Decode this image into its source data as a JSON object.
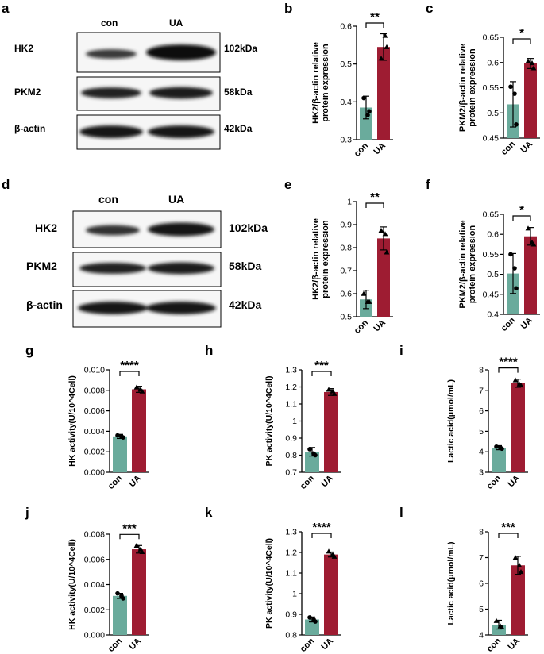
{
  "panel_letters": {
    "a": "a",
    "b": "b",
    "c": "c",
    "d": "d",
    "e": "e",
    "f": "f",
    "g": "g",
    "h": "h",
    "i": "i",
    "j": "j",
    "k": "k",
    "l": "l"
  },
  "blots": [
    {
      "id": "a",
      "columns": [
        "con",
        "UA"
      ],
      "rows": [
        {
          "name": "HK2",
          "mw": "102kDa"
        },
        {
          "name": "PKM2",
          "mw": "58kDa"
        },
        {
          "name": "β-actin",
          "mw": "42kDa"
        }
      ]
    },
    {
      "id": "d",
      "columns": [
        "con",
        "UA"
      ],
      "rows": [
        {
          "name": "HK2",
          "mw": "102kDa"
        },
        {
          "name": "PKM2",
          "mw": "58kDa"
        },
        {
          "name": "β-actin",
          "mw": "42kDa"
        }
      ]
    }
  ],
  "colors": {
    "con": "#6aab9c",
    "UA": "#9e1c32"
  },
  "chart_data": [
    {
      "id": "b",
      "type": "bar",
      "categories": [
        "con",
        "UA"
      ],
      "values": [
        0.385,
        0.545
      ],
      "errors": [
        0.03,
        0.035
      ],
      "points": [
        [
          0.41,
          0.365,
          0.375
        ],
        [
          0.515,
          0.575,
          0.545
        ]
      ],
      "point_shapes": [
        "circle",
        "triangle"
      ],
      "ylabel": [
        "HK2/β-actin relative",
        "protein expression"
      ],
      "ylim": [
        0.3,
        0.6
      ],
      "yticks": [
        0.3,
        0.4,
        0.5,
        0.6
      ],
      "significance": "**"
    },
    {
      "id": "c",
      "type": "bar",
      "categories": [
        "con",
        "UA"
      ],
      "values": [
        0.517,
        0.598
      ],
      "errors": [
        0.045,
        0.01
      ],
      "points": [
        [
          0.552,
          0.538,
          0.477
        ],
        [
          0.603,
          0.599,
          0.589
        ]
      ],
      "point_shapes": [
        "circle",
        "triangle"
      ],
      "ylabel": [
        "PKM2/β-actin relative",
        "protein expression"
      ],
      "ylim": [
        0.45,
        0.65
      ],
      "yticks": [
        0.45,
        0.5,
        0.55,
        0.6,
        0.65
      ],
      "significance": "*"
    },
    {
      "id": "e",
      "type": "bar",
      "categories": [
        "con",
        "UA"
      ],
      "values": [
        0.575,
        0.84
      ],
      "errors": [
        0.04,
        0.05
      ],
      "points": [
        [
          0.6,
          0.565,
          0.565
        ],
        [
          0.875,
          0.86,
          0.78
        ]
      ],
      "point_shapes": [
        "triangle",
        "triangle"
      ],
      "ylabel": [
        "HK2/β-actin relative",
        "protein expression"
      ],
      "ylim": [
        0.5,
        1.0
      ],
      "yticks": [
        0.5,
        0.6,
        0.7,
        0.8,
        0.9,
        1.0
      ],
      "significance": "**"
    },
    {
      "id": "f",
      "type": "bar",
      "categories": [
        "con",
        "UA"
      ],
      "values": [
        0.502,
        0.595
      ],
      "errors": [
        0.05,
        0.022
      ],
      "points": [
        [
          0.55,
          0.515,
          0.465
        ],
        [
          0.615,
          0.58,
          0.575
        ]
      ],
      "point_shapes": [
        "circle",
        "triangle"
      ],
      "ylabel": [
        "PKM2/β-actin relative",
        "protein expression"
      ],
      "ylim": [
        0.4,
        0.65
      ],
      "yticks": [
        0.4,
        0.45,
        0.5,
        0.55,
        0.6,
        0.65
      ],
      "significance": "*"
    },
    {
      "id": "g",
      "type": "bar",
      "categories": [
        "con",
        "UA"
      ],
      "values": [
        0.0035,
        0.0081
      ],
      "errors": [
        0.0002,
        0.0003
      ],
      "points": [
        [
          0.0036,
          0.0035,
          0.0034
        ],
        [
          0.0083,
          0.0081,
          0.0079
        ]
      ],
      "point_shapes": [
        "circle",
        "triangle"
      ],
      "ylabel": [
        "HK activity(U/10^4Cell)"
      ],
      "ylim": [
        0,
        0.01
      ],
      "yticks": [
        "0.000",
        "0.002",
        "0.004",
        "0.006",
        "0.008",
        "0.010"
      ],
      "significance": "****"
    },
    {
      "id": "h",
      "type": "bar",
      "categories": [
        "con",
        "UA"
      ],
      "values": [
        0.82,
        1.17
      ],
      "errors": [
        0.025,
        0.02
      ],
      "points": [
        [
          0.835,
          0.81,
          0.8
        ],
        [
          1.185,
          1.175,
          1.16
        ]
      ],
      "point_shapes": [
        "circle",
        "triangle"
      ],
      "ylabel": [
        "PK activity(U/10^4Cell)"
      ],
      "ylim": [
        0.7,
        1.3
      ],
      "yticks": [
        0.7,
        0.8,
        0.9,
        1.0,
        1.1,
        1.2,
        1.3
      ],
      "significance": "***"
    },
    {
      "id": "i",
      "type": "bar",
      "categories": [
        "con",
        "UA"
      ],
      "values": [
        4.2,
        7.35
      ],
      "errors": [
        0.1,
        0.2
      ],
      "points": [
        [
          4.25,
          4.2,
          4.15
        ],
        [
          7.5,
          7.3,
          7.25
        ]
      ],
      "point_shapes": [
        "circle",
        "triangle"
      ],
      "ylabel": [
        "Lactic acid(μmol/mL)"
      ],
      "ylim": [
        3,
        8
      ],
      "yticks": [
        3,
        4,
        5,
        6,
        7,
        8
      ],
      "significance": "****"
    },
    {
      "id": "j",
      "type": "bar",
      "categories": [
        "con",
        "UA"
      ],
      "values": [
        0.0031,
        0.0068
      ],
      "errors": [
        0.0002,
        0.0003
      ],
      "points": [
        [
          0.0033,
          0.0031,
          0.0029
        ],
        [
          0.0071,
          0.0068,
          0.0066
        ]
      ],
      "point_shapes": [
        "circle",
        "triangle"
      ],
      "ylabel": [
        "HK activity(U/10^4Cell)"
      ],
      "ylim": [
        0,
        0.008
      ],
      "yticks": [
        "0.000",
        "0.002",
        "0.004",
        "0.006",
        "0.008"
      ],
      "significance": "***"
    },
    {
      "id": "k",
      "type": "bar",
      "categories": [
        "con",
        "UA"
      ],
      "values": [
        0.875,
        1.19
      ],
      "errors": [
        0.012,
        0.012
      ],
      "points": [
        [
          0.885,
          0.875,
          0.865
        ],
        [
          1.205,
          1.19,
          1.18
        ]
      ],
      "point_shapes": [
        "circle",
        "triangle"
      ],
      "ylabel": [
        "PK activity(U/10^4Cell)"
      ],
      "ylim": [
        0.8,
        1.3
      ],
      "yticks": [
        0.8,
        0.9,
        1.0,
        1.1,
        1.2,
        1.3
      ],
      "significance": "****"
    },
    {
      "id": "l",
      "type": "bar",
      "categories": [
        "con",
        "UA"
      ],
      "values": [
        4.4,
        6.7
      ],
      "errors": [
        0.17,
        0.35
      ],
      "points": [
        [
          4.55,
          4.35,
          4.3
        ],
        [
          7.0,
          6.7,
          6.45
        ]
      ],
      "point_shapes": [
        "triangle",
        "triangle"
      ],
      "ylabel": [
        "Lactic acid(μmol/mL)"
      ],
      "ylim": [
        4,
        8
      ],
      "yticks": [
        4,
        5,
        6,
        7,
        8
      ],
      "significance": "***"
    }
  ]
}
